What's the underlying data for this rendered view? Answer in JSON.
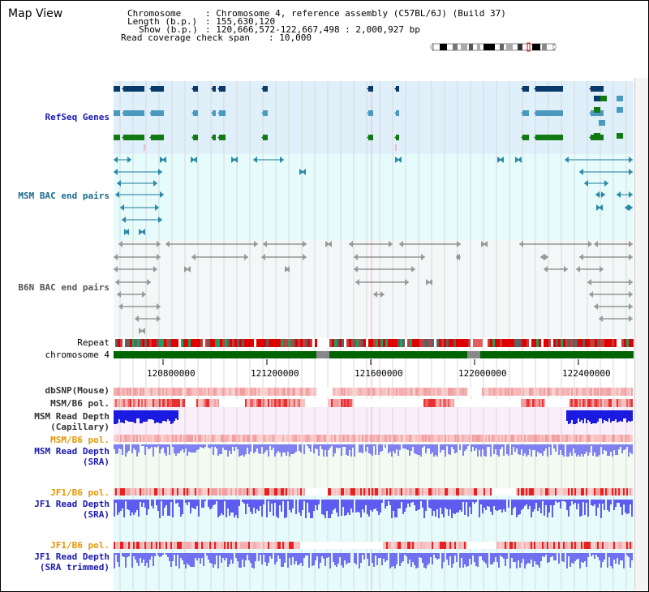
{
  "title": "Map View",
  "header": {
    "chromosome_key": "Chromosome",
    "chromosome_val": ": Chromosome 4, reference assembly (C57BL/6J) (Build 37)",
    "length_key": "Length (b.p.)",
    "length_val": ": 155,630,120",
    "show_key": "Show (b.p.)",
    "show_val": ": 120,666,572-122,667,498 : 2,000,927 bp",
    "span_key": "Read coverage check span",
    "span_val": ": 10,000"
  },
  "tracks": {
    "refseq": "RefSeq Genes",
    "msm_bac": "MSM BAC end pairs",
    "b6n_bac": "B6N BAC end pairs",
    "repeat": "Repeat",
    "chromosome": "chromosome 4",
    "dbsnp": "dbSNP(Mouse)",
    "msm_b6_pol_1": "MSM/B6 pol.",
    "msm_read_depth_cap_1": "MSM Read Depth",
    "msm_read_depth_cap_2": "(Capillary)",
    "msm_b6_pol_2": "MSM/B6 pol.",
    "msm_read_depth_sra_1": "MSM Read Depth",
    "msm_read_depth_sra_2": "(SRA)",
    "jf1_b6_pol_1": "JF1/B6 pol.",
    "jf1_read_depth_sra_1": "JF1 Read Depth",
    "jf1_read_depth_sra_2": "(SRA)",
    "jf1_b6_pol_2": "JF1/B6 pol.",
    "jf1_read_depth_trim_1": "JF1 Read Depth",
    "jf1_read_depth_trim_2": "(SRA trimmed)"
  },
  "ruler": {
    "ticks": [
      "120800000",
      "121200000",
      "121600000",
      "122000000",
      "122400000"
    ]
  },
  "colors": {
    "refseq_bg": "#dff0fb",
    "bac_bg": "#e6fbfb",
    "chrom_bar": "#006400",
    "msm_depth": "#3b3bf0",
    "jf1_depth": "#5c5cf0",
    "pol_label": "#e69500",
    "label_blue": "#1a1ab0"
  }
}
